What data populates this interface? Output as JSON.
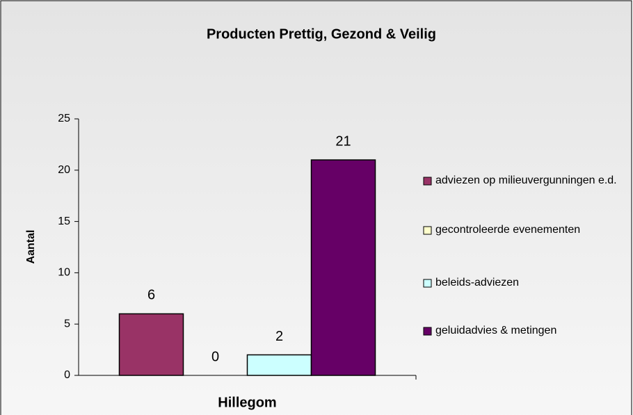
{
  "chart_data": {
    "type": "bar",
    "title": "Producten Prettig, Gezond & Veilig",
    "categories": [
      "Hillegom"
    ],
    "series": [
      {
        "name": "adviezen op milieuvergunningen e.d.",
        "color": "#993366",
        "values": [
          6
        ]
      },
      {
        "name": "gecontroleerde evenementen",
        "color": "#ffffcc",
        "values": [
          0
        ]
      },
      {
        "name": "beleids-adviezen",
        "color": "#ccffff",
        "values": [
          2
        ]
      },
      {
        "name": "geluidadvies & metingen",
        "color": "#660066",
        "values": [
          21
        ]
      }
    ],
    "ylabel": "Aantal",
    "ylim": [
      0,
      25
    ],
    "yticks": [
      0,
      5,
      10,
      15,
      20,
      25
    ],
    "data_labels": true,
    "legend": "right"
  }
}
